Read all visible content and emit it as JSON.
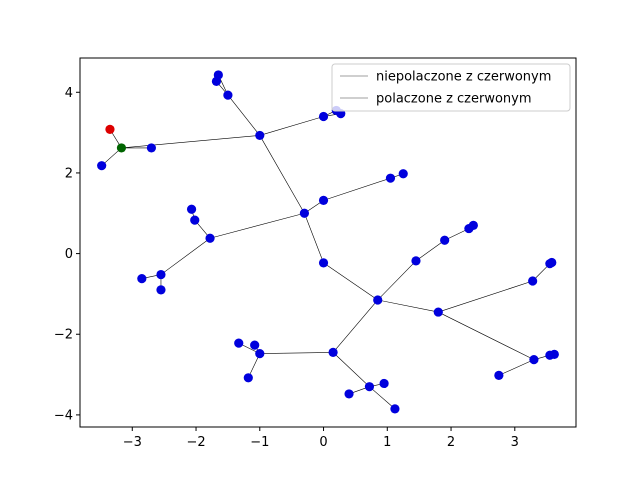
{
  "chart_data": {
    "type": "scatter",
    "title": "",
    "xlabel": "",
    "ylabel": "",
    "xlim": [
      -3.82,
      3.96
    ],
    "ylim": [
      -4.3,
      4.85
    ],
    "xticks": [
      -3,
      -2,
      -1,
      0,
      1,
      2,
      3
    ],
    "yticks": [
      -4,
      -2,
      0,
      2,
      4
    ],
    "grid": false,
    "legend": {
      "placement": "top-right",
      "entries": [
        {
          "label": "niepolaczone z czerwonym",
          "color": "#bfbfbf"
        },
        {
          "label": "polaczone z czerwonym",
          "color": "#bfbfbf"
        }
      ]
    },
    "colors": {
      "node": "#0000dd",
      "red_node": "#dd0000",
      "green_node": "#006400",
      "edge": "#000000"
    },
    "nodes": [
      {
        "id": "A",
        "x": -1.0,
        "y": 2.93
      },
      {
        "id": "B",
        "x": -0.3,
        "y": 1.0
      },
      {
        "id": "C",
        "x": 0.0,
        "y": -0.23
      },
      {
        "id": "D",
        "x": 0.85,
        "y": -1.15
      },
      {
        "id": "E",
        "x": 0.15,
        "y": -2.45
      },
      {
        "id": "F",
        "x": 1.8,
        "y": -1.45
      },
      {
        "id": "G",
        "x": 1.45,
        "y": -0.18
      },
      {
        "id": "H",
        "x": 3.3,
        "y": -2.63
      },
      {
        "id": "I",
        "x": -3.17,
        "y": 2.62,
        "color": "green"
      },
      {
        "id": "J",
        "x": -3.35,
        "y": 3.08,
        "color": "red"
      },
      {
        "id": "K",
        "x": -3.48,
        "y": 2.18
      },
      {
        "id": "L",
        "x": -2.7,
        "y": 2.62
      },
      {
        "id": "M",
        "x": -1.5,
        "y": 3.93
      },
      {
        "id": "N",
        "x": -1.65,
        "y": 4.43
      },
      {
        "id": "O",
        "x": -1.68,
        "y": 4.27
      },
      {
        "id": "P",
        "x": 0.0,
        "y": 3.4
      },
      {
        "id": "Q",
        "x": 0.2,
        "y": 3.55
      },
      {
        "id": "R",
        "x": 0.27,
        "y": 3.47
      },
      {
        "id": "S",
        "x": 0.0,
        "y": 1.32
      },
      {
        "id": "T",
        "x": 1.05,
        "y": 1.87
      },
      {
        "id": "U",
        "x": 1.25,
        "y": 1.98
      },
      {
        "id": "V",
        "x": -1.78,
        "y": 0.38
      },
      {
        "id": "W",
        "x": -2.02,
        "y": 0.83
      },
      {
        "id": "X",
        "x": -2.07,
        "y": 1.1
      },
      {
        "id": "Y",
        "x": -2.55,
        "y": -0.52
      },
      {
        "id": "Z",
        "x": -2.85,
        "y": -0.62
      },
      {
        "id": "AA",
        "x": -2.55,
        "y": -0.9
      },
      {
        "id": "AB",
        "x": 1.9,
        "y": 0.33
      },
      {
        "id": "AC",
        "x": 2.28,
        "y": 0.62
      },
      {
        "id": "AD",
        "x": 2.35,
        "y": 0.7
      },
      {
        "id": "AE",
        "x": 3.28,
        "y": -0.68
      },
      {
        "id": "AF",
        "x": 3.55,
        "y": -0.25
      },
      {
        "id": "AG",
        "x": 3.58,
        "y": -0.22
      },
      {
        "id": "AH",
        "x": 3.55,
        "y": -2.52
      },
      {
        "id": "AI",
        "x": 3.62,
        "y": -2.5
      },
      {
        "id": "AJ",
        "x": 2.75,
        "y": -3.02
      },
      {
        "id": "AK",
        "x": -1.0,
        "y": -2.48
      },
      {
        "id": "AL",
        "x": -1.33,
        "y": -2.22
      },
      {
        "id": "AM",
        "x": -1.08,
        "y": -2.27
      },
      {
        "id": "AN",
        "x": -1.18,
        "y": -3.08
      },
      {
        "id": "AO",
        "x": 0.72,
        "y": -3.3
      },
      {
        "id": "AP",
        "x": 0.4,
        "y": -3.48
      },
      {
        "id": "AQ",
        "x": 0.95,
        "y": -3.22
      },
      {
        "id": "AR",
        "x": 1.12,
        "y": -3.85
      }
    ],
    "edges": [
      [
        "I",
        "J"
      ],
      [
        "I",
        "K"
      ],
      [
        "I",
        "L"
      ],
      [
        "I",
        "A"
      ],
      [
        "A",
        "M"
      ],
      [
        "M",
        "N"
      ],
      [
        "M",
        "O"
      ],
      [
        "A",
        "P"
      ],
      [
        "P",
        "Q"
      ],
      [
        "P",
        "R"
      ],
      [
        "A",
        "B"
      ],
      [
        "B",
        "S"
      ],
      [
        "S",
        "T"
      ],
      [
        "T",
        "U"
      ],
      [
        "B",
        "V"
      ],
      [
        "V",
        "W"
      ],
      [
        "W",
        "X"
      ],
      [
        "V",
        "Y"
      ],
      [
        "Y",
        "Z"
      ],
      [
        "Y",
        "AA"
      ],
      [
        "B",
        "C"
      ],
      [
        "C",
        "D"
      ],
      [
        "D",
        "G"
      ],
      [
        "G",
        "AB"
      ],
      [
        "AB",
        "AC"
      ],
      [
        "AC",
        "AD"
      ],
      [
        "D",
        "F"
      ],
      [
        "F",
        "AE"
      ],
      [
        "AE",
        "AF"
      ],
      [
        "AF",
        "AG"
      ],
      [
        "F",
        "H"
      ],
      [
        "H",
        "AH"
      ],
      [
        "AH",
        "AI"
      ],
      [
        "H",
        "AJ"
      ],
      [
        "D",
        "E"
      ],
      [
        "E",
        "AK"
      ],
      [
        "AK",
        "AL"
      ],
      [
        "AK",
        "AM"
      ],
      [
        "AK",
        "AN"
      ],
      [
        "E",
        "AO"
      ],
      [
        "AO",
        "AP"
      ],
      [
        "AO",
        "AQ"
      ],
      [
        "AO",
        "AR"
      ]
    ]
  }
}
